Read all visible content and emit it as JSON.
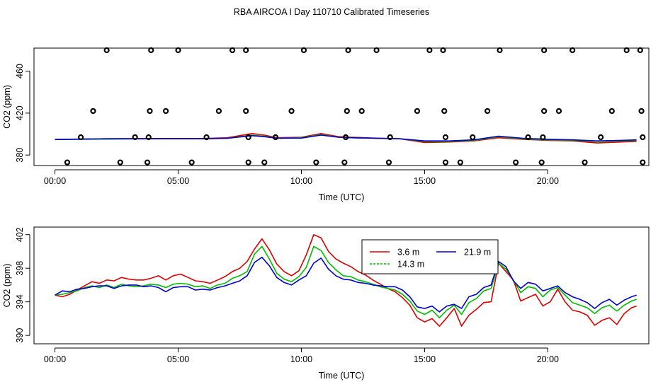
{
  "chart_data": {
    "title": "RBA AIRCOA I  Day 110710  Calibrated Timeseries",
    "colors": {
      "3.6 m": "#dd0000",
      "14.3 m": "#00bb00",
      "21.9 m": "#0000cc"
    },
    "panels": [
      {
        "type": "line",
        "ylabel": "CO2 (ppm)",
        "xlabel": "Time (UTC)",
        "x_units": "hours",
        "xlim": [
          -0.85,
          24.1
        ],
        "ylim": [
          370,
          482
        ],
        "x_ticks": [
          0,
          5,
          10,
          15,
          20
        ],
        "x_tick_labels": [
          "00:00",
          "05:00",
          "10:00",
          "15:00",
          "20:00"
        ],
        "y_ticks": [
          380,
          420,
          460
        ],
        "y_tick_labels": [
          "380",
          "420",
          "460"
        ],
        "calibration_points": {
          "y_levels": [
            373,
            397,
            422,
            480
          ],
          "level_0": [
            0.5,
            2.65,
            3.75,
            5.55,
            7.85,
            8.5,
            10.6,
            11.75,
            13.55,
            15.85,
            16.45,
            18.7,
            19.75,
            21.5,
            23.85
          ],
          "level_1": [
            1.05,
            3.25,
            3.8,
            6.15,
            7.85,
            8.95,
            11.8,
            13.6,
            15.85,
            16.95,
            19.2,
            19.8,
            22.15,
            23.85
          ],
          "level_2": [
            1.55,
            3.85,
            4.5,
            6.65,
            7.75,
            9.6,
            11.85,
            12.45,
            14.7,
            15.8,
            17.55,
            19.85,
            20.45,
            22.6,
            23.8
          ],
          "level_3": [
            2.1,
            3.9,
            5.0,
            7.2,
            7.75,
            10.1,
            11.9,
            13.05,
            15.2,
            15.75,
            18.05,
            19.85,
            21.0,
            23.2,
            23.75
          ]
        },
        "series": [
          {
            "name": "3.6 m",
            "x": [
              0,
              2,
              4,
              6,
              7,
              8,
              8.5,
              9,
              10,
              10.8,
              11.5,
              12,
              13,
              14,
              15,
              16,
              17,
              18,
              19,
              20,
              21,
              22,
              23,
              23.6
            ],
            "values": [
              394.8,
              395.5,
              395.8,
              395.8,
              396.5,
              400.5,
              399.0,
              396.5,
              397.0,
              400.5,
              397.5,
              397.0,
              396.2,
              395.5,
              392.0,
              392.5,
              393.5,
              396.5,
              395.0,
              394.0,
              393.5,
              391.5,
              392.5,
              393.0
            ]
          },
          {
            "name": "14.3 m",
            "x": [
              0,
              2,
              4,
              6,
              7,
              8,
              8.5,
              9,
              10,
              10.8,
              11.5,
              12,
              13,
              14,
              15,
              16,
              17,
              18,
              19,
              20,
              21,
              22,
              23,
              23.6
            ],
            "values": [
              394.8,
              395.2,
              395.5,
              395.5,
              396.0,
              399.0,
              398.0,
              396.0,
              396.5,
              399.5,
              397.0,
              396.5,
              396.0,
              395.5,
              393.0,
              393.0,
              394.0,
              397.5,
              395.5,
              394.5,
              394.0,
              393.0,
              393.5,
              394.0
            ]
          },
          {
            "name": "21.9 m",
            "x": [
              0,
              2,
              4,
              6,
              7,
              8,
              8.5,
              9,
              10,
              10.8,
              11.5,
              12,
              13,
              14,
              15,
              16,
              17,
              18,
              19,
              20,
              21,
              22,
              23,
              23.6
            ],
            "values": [
              394.8,
              395.5,
              395.5,
              395.5,
              396.0,
              398.5,
              397.5,
              396.0,
              396.2,
              399.0,
              397.0,
              396.5,
              396.0,
              395.5,
              393.5,
              393.5,
              394.5,
              398.0,
              396.0,
              395.0,
              394.5,
              393.5,
              394.0,
              394.5
            ]
          }
        ]
      },
      {
        "type": "line",
        "ylabel": "CO2 (ppm)",
        "xlabel": "Time (UTC)",
        "x_units": "hours",
        "xlim": [
          -0.85,
          24.1
        ],
        "ylim": [
          389.0,
          402.9
        ],
        "x_ticks": [
          0,
          5,
          10,
          15,
          20
        ],
        "x_tick_labels": [
          "00:00",
          "05:00",
          "10:00",
          "15:00",
          "20:00"
        ],
        "y_ticks": [
          390,
          394,
          398,
          402
        ],
        "y_tick_labels": [
          "390",
          "394",
          "398",
          "402"
        ],
        "legend": {
          "position": "top-center",
          "entries": [
            "3.6 m",
            "14.3 m",
            "21.9 m"
          ]
        },
        "series": [
          {
            "name": "3.6 m",
            "x": [
              0,
              0.3,
              0.6,
              0.9,
              1.2,
              1.5,
              1.8,
              2.1,
              2.4,
              2.7,
              3.0,
              3.3,
              3.6,
              3.9,
              4.2,
              4.5,
              4.8,
              5.1,
              5.4,
              5.7,
              6.0,
              6.3,
              6.6,
              6.9,
              7.2,
              7.5,
              7.8,
              8.1,
              8.4,
              8.7,
              9.0,
              9.3,
              9.6,
              9.9,
              10.2,
              10.5,
              10.8,
              11.1,
              11.4,
              11.7,
              12.0,
              12.3,
              12.6,
              12.9,
              13.2,
              13.5,
              13.8,
              14.1,
              14.4,
              14.7,
              15.0,
              15.3,
              15.6,
              15.9,
              16.2,
              16.5,
              16.8,
              17.1,
              17.4,
              17.7,
              18.0,
              18.3,
              18.6,
              18.9,
              19.2,
              19.5,
              19.8,
              20.1,
              20.4,
              20.7,
              21.0,
              21.3,
              21.6,
              21.9,
              22.2,
              22.5,
              22.8,
              23.1,
              23.4,
              23.6
            ],
            "values": [
              394.8,
              394.6,
              394.9,
              395.4,
              395.9,
              396.4,
              396.2,
              396.6,
              396.5,
              396.9,
              396.7,
              396.6,
              396.6,
              396.8,
              397.1,
              396.6,
              397.1,
              397.3,
              396.9,
              396.5,
              396.4,
              396.2,
              396.6,
              397.0,
              397.6,
              398.0,
              398.8,
              400.3,
              401.5,
              400.2,
              398.5,
              397.6,
              397.1,
              397.7,
              399.6,
              402.0,
              401.6,
              400.0,
              399.1,
              398.6,
              398.2,
              397.6,
              397.2,
              396.6,
              396.1,
              395.6,
              395.2,
              394.5,
              393.6,
              392.1,
              391.6,
              392.0,
              391.1,
              392.1,
              393.2,
              391.1,
              392.4,
              393.1,
              393.9,
              394.0,
              398.6,
              397.6,
              396.6,
              394.1,
              394.5,
              394.9,
              393.5,
              394.0,
              395.5,
              394.0,
              393.0,
              392.8,
              392.4,
              391.2,
              391.8,
              392.1,
              391.3,
              392.6,
              393.3,
              393.5
            ]
          },
          {
            "name": "14.3 m",
            "x": [
              0,
              0.3,
              0.6,
              0.9,
              1.2,
              1.5,
              1.8,
              2.1,
              2.4,
              2.7,
              3.0,
              3.3,
              3.6,
              3.9,
              4.2,
              4.5,
              4.8,
              5.1,
              5.4,
              5.7,
              6.0,
              6.3,
              6.6,
              6.9,
              7.2,
              7.5,
              7.8,
              8.1,
              8.4,
              8.7,
              9.0,
              9.3,
              9.6,
              9.9,
              10.2,
              10.5,
              10.8,
              11.1,
              11.4,
              11.7,
              12.0,
              12.3,
              12.6,
              12.9,
              13.2,
              13.5,
              13.8,
              14.1,
              14.4,
              14.7,
              15.0,
              15.3,
              15.6,
              15.9,
              16.2,
              16.5,
              16.8,
              17.1,
              17.4,
              17.7,
              18.0,
              18.3,
              18.6,
              18.9,
              19.2,
              19.5,
              19.8,
              20.1,
              20.4,
              20.7,
              21.0,
              21.3,
              21.6,
              21.9,
              22.2,
              22.5,
              22.8,
              23.1,
              23.4,
              23.6
            ],
            "values": [
              394.8,
              394.9,
              395.1,
              395.3,
              395.7,
              395.9,
              395.7,
              396.0,
              395.7,
              396.1,
              395.9,
              395.8,
              395.9,
              396.1,
              396.0,
              395.7,
              396.1,
              396.2,
              396.1,
              395.8,
              395.9,
              395.6,
              396.0,
              396.2,
              396.8,
              397.1,
              397.6,
              399.7,
              400.6,
              399.1,
              397.4,
              396.7,
              396.4,
              397.0,
              398.1,
              400.6,
              400.1,
              398.7,
              397.8,
              397.1,
              397.0,
              396.6,
              396.4,
              396.1,
              395.8,
              395.6,
              395.4,
              394.9,
              394.1,
              392.9,
              392.5,
              393.0,
              392.1,
              393.0,
              393.6,
              392.5,
              393.9,
              394.4,
              395.3,
              395.6,
              398.6,
              397.9,
              396.6,
              395.1,
              395.8,
              395.6,
              394.6,
              395.4,
              395.7,
              394.8,
              393.9,
              393.6,
              393.3,
              392.6,
              393.3,
              393.6,
              392.9,
              393.6,
              394.1,
              394.3
            ]
          },
          {
            "name": "21.9 m",
            "x": [
              0,
              0.3,
              0.6,
              0.9,
              1.2,
              1.5,
              1.8,
              2.1,
              2.4,
              2.7,
              3.0,
              3.3,
              3.6,
              3.9,
              4.2,
              4.5,
              4.8,
              5.1,
              5.4,
              5.7,
              6.0,
              6.3,
              6.6,
              6.9,
              7.2,
              7.5,
              7.8,
              8.1,
              8.4,
              8.7,
              9.0,
              9.3,
              9.6,
              9.9,
              10.2,
              10.5,
              10.8,
              11.1,
              11.4,
              11.7,
              12.0,
              12.3,
              12.6,
              12.9,
              13.2,
              13.5,
              13.8,
              14.1,
              14.4,
              14.7,
              15.0,
              15.3,
              15.6,
              15.9,
              16.2,
              16.5,
              16.8,
              17.1,
              17.4,
              17.7,
              18.0,
              18.3,
              18.6,
              18.9,
              19.2,
              19.5,
              19.8,
              20.1,
              20.4,
              20.7,
              21.0,
              21.3,
              21.6,
              21.9,
              22.2,
              22.5,
              22.8,
              23.1,
              23.4,
              23.6
            ],
            "values": [
              394.8,
              395.3,
              395.2,
              395.5,
              395.6,
              395.8,
              395.9,
              395.9,
              395.6,
              395.9,
              396.0,
              396.0,
              395.8,
              395.9,
              395.7,
              395.2,
              395.7,
              395.8,
              395.8,
              395.4,
              395.5,
              395.4,
              395.7,
              395.9,
              396.2,
              396.5,
              397.1,
              398.7,
              399.3,
              398.3,
              396.9,
              396.3,
              396.0,
              396.6,
              397.1,
              398.6,
              399.2,
              397.9,
              397.1,
              396.7,
              396.6,
              396.3,
              396.2,
              396.0,
              395.9,
              395.8,
              395.8,
              395.4,
              394.6,
              393.4,
              393.2,
              393.5,
              392.8,
              393.5,
              393.7,
              393.2,
              394.6,
              394.9,
              395.7,
              396.0,
              398.8,
              398.2,
              396.5,
              395.6,
              396.3,
              396.1,
              395.3,
              395.6,
              395.9,
              395.1,
              394.6,
              394.3,
              393.9,
              393.2,
              393.9,
              394.3,
              393.6,
              394.2,
              394.6,
              394.8
            ]
          }
        ]
      }
    ]
  }
}
